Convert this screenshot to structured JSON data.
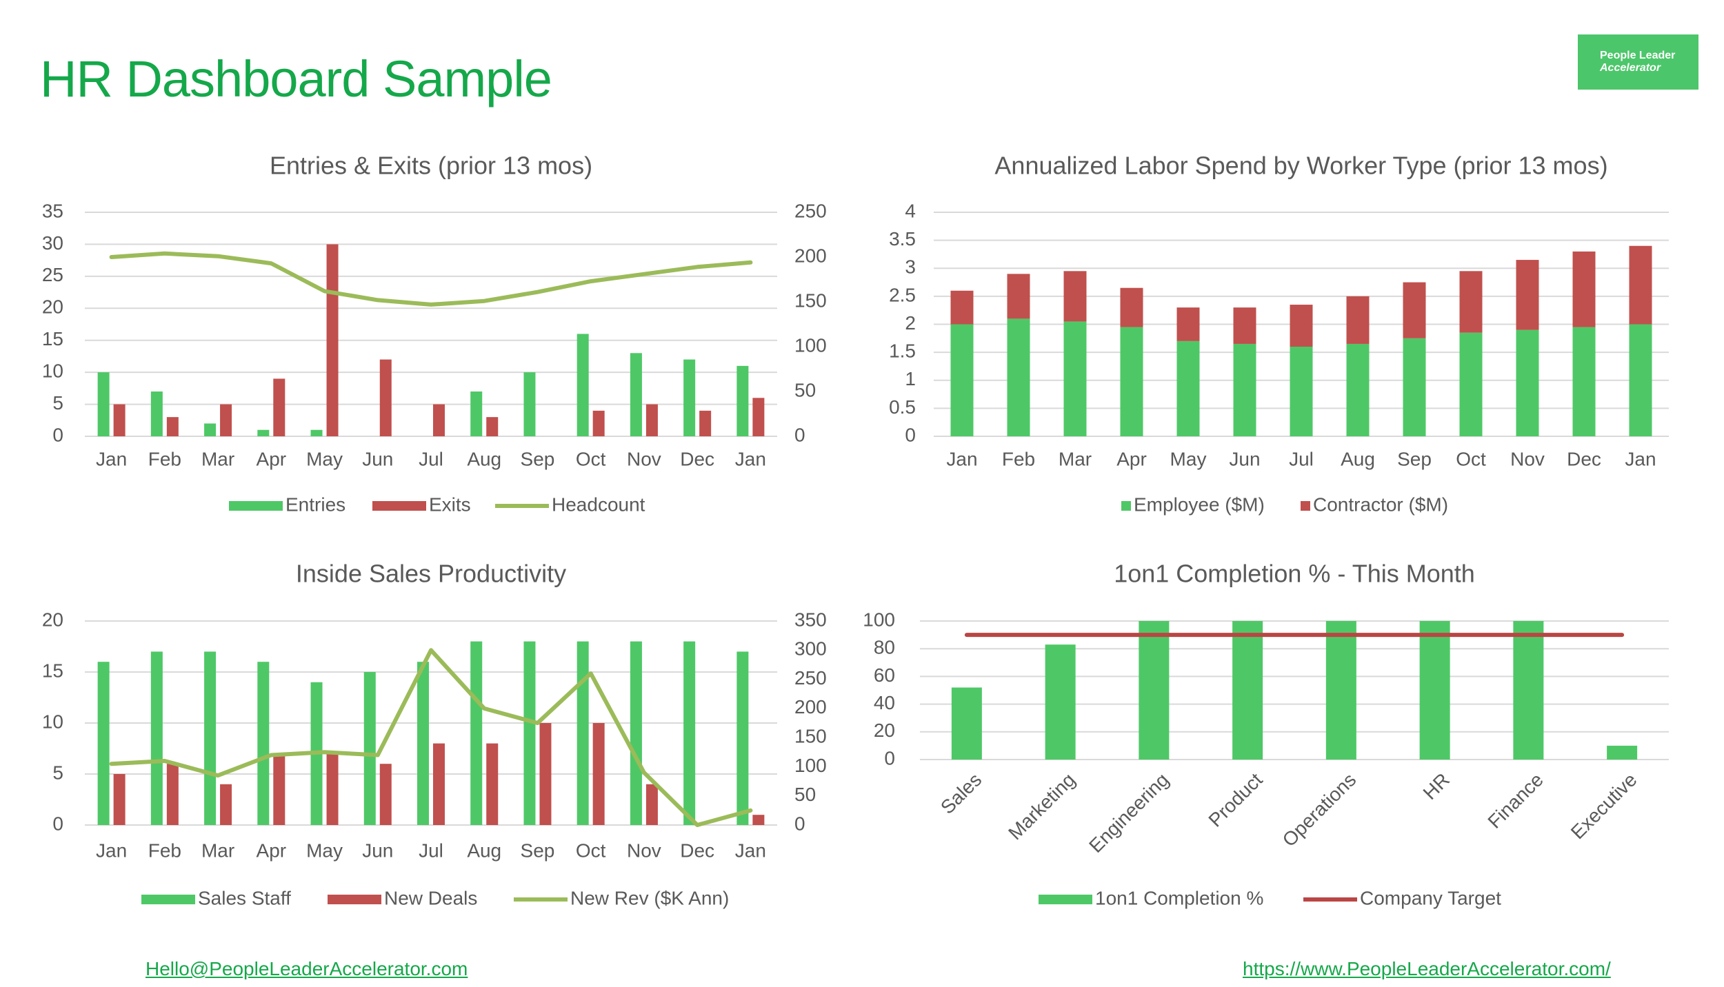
{
  "page": {
    "title": "HR Dashboard Sample",
    "logo_line1": "People Leader",
    "logo_line2": "Accelerator",
    "email_link": "Hello@PeopleLeaderAccelerator.com",
    "website_link": "https://www.PeopleLeaderAccelerator.com/"
  },
  "colors": {
    "title_green": "#15a84a",
    "bar_green": "#4ec866",
    "bar_red": "#c0504d",
    "line_green": "#9bbb59",
    "target_red": "#b94644",
    "grid": "#d9d9d9",
    "text": "#595959"
  },
  "chart_data": [
    {
      "id": "entries-exits",
      "type": "bar",
      "title": "Entries & Exits (prior 13 mos)",
      "categories": [
        "Jan",
        "Feb",
        "Mar",
        "Apr",
        "May",
        "Jun",
        "Jul",
        "Aug",
        "Sep",
        "Oct",
        "Nov",
        "Dec",
        "Jan"
      ],
      "series": [
        {
          "name": "Entries",
          "kind": "bar",
          "axis": "left",
          "values": [
            10,
            7,
            2,
            1,
            1,
            0,
            0,
            7,
            10,
            16,
            13,
            12,
            11
          ]
        },
        {
          "name": "Exits",
          "kind": "bar",
          "axis": "left",
          "values": [
            5,
            3,
            5,
            9,
            30,
            12,
            5,
            3,
            0,
            4,
            5,
            4,
            6
          ]
        },
        {
          "name": "Headcount",
          "kind": "line",
          "axis": "right",
          "values": [
            200,
            204,
            201,
            193,
            162,
            152,
            147,
            151,
            161,
            173,
            181,
            189,
            194
          ]
        }
      ],
      "y_left": {
        "min": 0,
        "max": 35,
        "ticks": [
          0,
          5,
          10,
          15,
          20,
          25,
          30,
          35
        ]
      },
      "y_right": {
        "min": 0,
        "max": 250,
        "ticks": [
          0,
          50,
          100,
          150,
          200,
          250
        ]
      },
      "grid": true,
      "legend": "bottom"
    },
    {
      "id": "labor-spend",
      "type": "bar",
      "stacked": true,
      "title": "Annualized Labor Spend by Worker Type (prior 13 mos)",
      "categories": [
        "Jan",
        "Feb",
        "Mar",
        "Apr",
        "May",
        "Jun",
        "Jul",
        "Aug",
        "Sep",
        "Oct",
        "Nov",
        "Dec",
        "Jan"
      ],
      "series": [
        {
          "name": "Employee ($M)",
          "values": [
            2.0,
            2.1,
            2.05,
            1.95,
            1.7,
            1.65,
            1.6,
            1.65,
            1.75,
            1.85,
            1.9,
            1.95,
            2.0
          ]
        },
        {
          "name": "Contractor ($M)",
          "values": [
            0.6,
            0.8,
            0.9,
            0.7,
            0.6,
            0.65,
            0.75,
            0.85,
            1.0,
            1.1,
            1.25,
            1.35,
            1.4
          ]
        }
      ],
      "y_left": {
        "min": 0,
        "max": 4,
        "ticks": [
          "0",
          "0.5",
          "1",
          "1.5",
          "2",
          "2.5",
          "3",
          "3.5",
          "4"
        ]
      },
      "grid": true,
      "legend": "bottom"
    },
    {
      "id": "inside-sales",
      "type": "bar",
      "title": "Inside Sales Productivity",
      "categories": [
        "Jan",
        "Feb",
        "Mar",
        "Apr",
        "May",
        "Jun",
        "Jul",
        "Aug",
        "Sep",
        "Oct",
        "Nov",
        "Dec",
        "Jan"
      ],
      "series": [
        {
          "name": "Sales Staff",
          "kind": "bar",
          "axis": "left",
          "values": [
            16,
            17,
            17,
            16,
            14,
            15,
            16,
            18,
            18,
            18,
            18,
            18,
            17
          ]
        },
        {
          "name": "New Deals",
          "kind": "bar",
          "axis": "left",
          "values": [
            5,
            6,
            4,
            7,
            7,
            6,
            8,
            8,
            10,
            10,
            4,
            0,
            1
          ]
        },
        {
          "name": "New Rev ($K Ann)",
          "kind": "line",
          "axis": "right",
          "values": [
            105,
            110,
            85,
            120,
            125,
            120,
            300,
            200,
            175,
            260,
            90,
            0,
            25
          ]
        }
      ],
      "y_left": {
        "min": 0,
        "max": 20,
        "ticks": [
          0,
          5,
          10,
          15,
          20
        ]
      },
      "y_right": {
        "min": 0,
        "max": 350,
        "ticks": [
          0,
          50,
          100,
          150,
          200,
          250,
          300,
          350
        ]
      },
      "grid": true,
      "legend": "bottom"
    },
    {
      "id": "one-on-one",
      "type": "bar",
      "title": "1on1 Completion % - This Month",
      "categories": [
        "Sales",
        "Marketing",
        "Engineering",
        "Product",
        "Operations",
        "HR",
        "Finance",
        "Executive"
      ],
      "series": [
        {
          "name": "1on1 Completion %",
          "kind": "bar",
          "values": [
            52,
            83,
            100,
            100,
            100,
            100,
            100,
            10
          ]
        },
        {
          "name": "Company Target",
          "kind": "line",
          "values": [
            90,
            90,
            90,
            90,
            90,
            90,
            90,
            90
          ]
        }
      ],
      "y_left": {
        "min": 0,
        "max": 100,
        "ticks": [
          0,
          20,
          40,
          60,
          80,
          100
        ]
      },
      "grid": true,
      "legend": "bottom"
    }
  ]
}
